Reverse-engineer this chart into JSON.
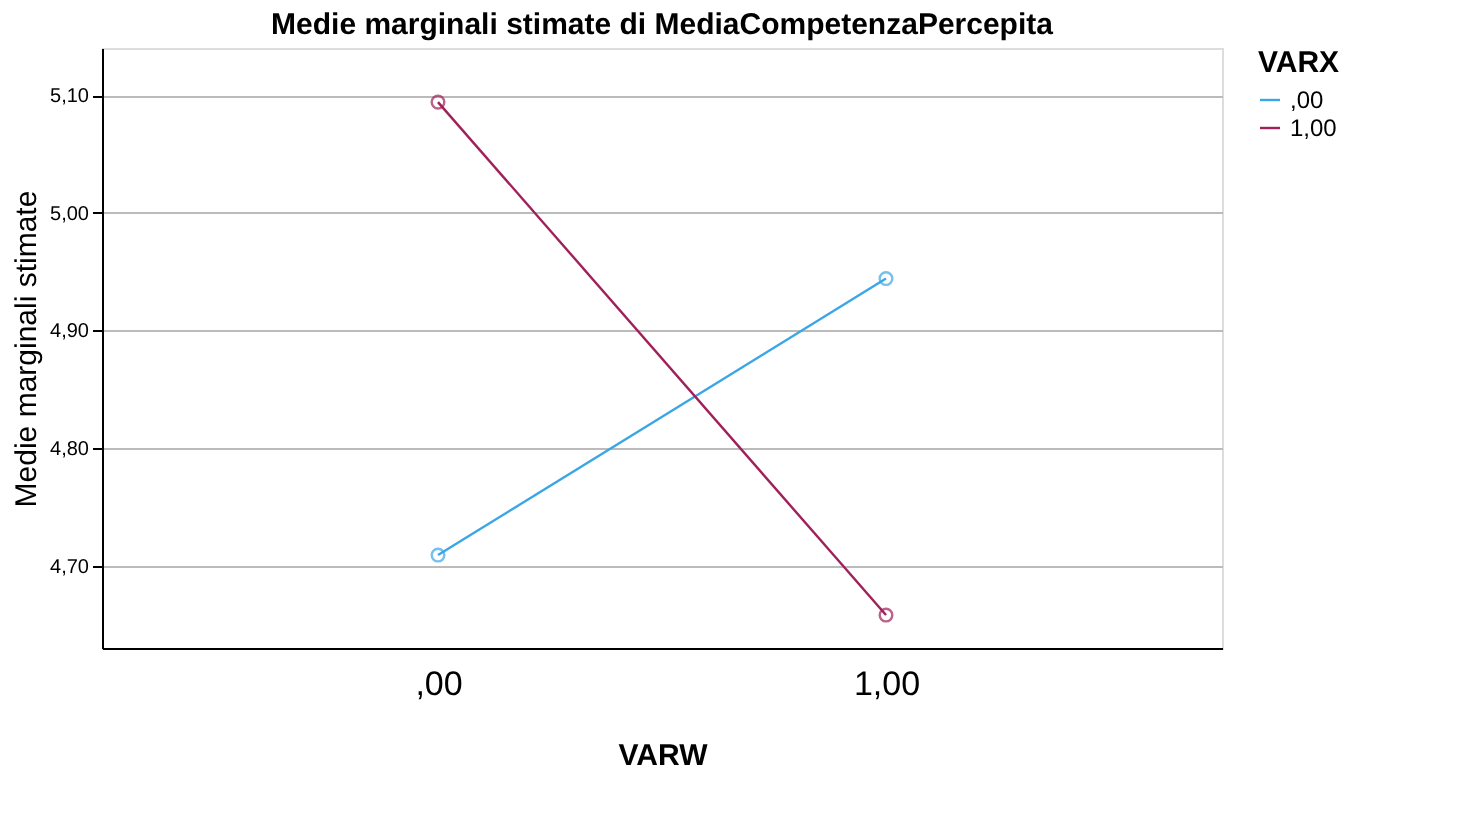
{
  "chart_data": {
    "type": "line",
    "title": "Medie marginali stimate di MediaCompetenzaPercepita",
    "xlabel": "VARW",
    "ylabel": "Medie marginali stimate",
    "legend_title": "VARX",
    "categories": [
      ",00",
      "1,00"
    ],
    "series": [
      {
        "name": ",00",
        "color": "#3ba6e6",
        "values": [
          4.709,
          4.944
        ]
      },
      {
        "name": "1,00",
        "color": "#a0205a",
        "values": [
          5.094,
          4.658
        ]
      }
    ],
    "ylim": [
      4.63,
      5.14
    ],
    "yticks": [
      {
        "value": 4.7,
        "label": "4,70"
      },
      {
        "value": 4.8,
        "label": "4,80"
      },
      {
        "value": 4.9,
        "label": "4,90"
      },
      {
        "value": 5.0,
        "label": "5,00"
      },
      {
        "value": 5.1,
        "label": "5,10"
      }
    ],
    "grid": "y",
    "legend": "top right",
    "marker": "circle",
    "line_style": "solid"
  }
}
